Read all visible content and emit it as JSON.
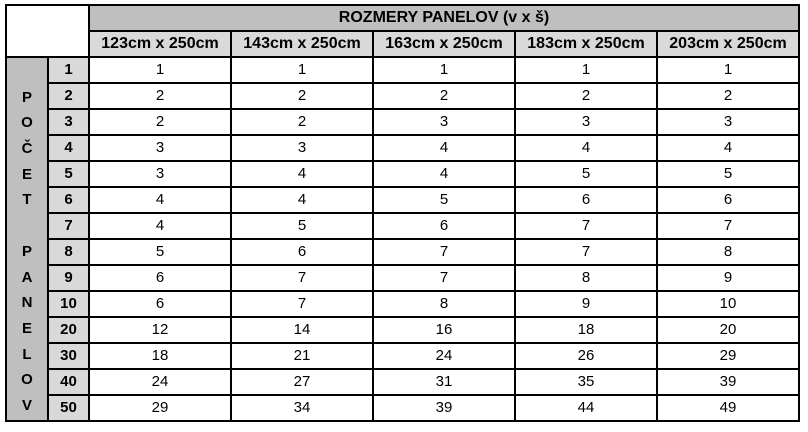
{
  "colors": {
    "band_dark": "#bfbfbf",
    "band_light": "#d9d9d9",
    "border": "#000000",
    "cell_background": "#ffffff",
    "text": "#000000"
  },
  "table": {
    "title": "ROZMERY PANELOV (v x š)",
    "side_label": "POČET PANELOV",
    "side_letters": [
      "",
      "P",
      "O",
      "Č",
      "E",
      "T",
      "",
      "P",
      "A",
      "N",
      "E",
      "L",
      "O",
      "V"
    ],
    "column_headers": [
      "123cm x 250cm",
      "143cm x 250cm",
      "163cm x 250cm",
      "183cm x 250cm",
      "203cm x 250cm"
    ],
    "rows": [
      {
        "count": "1",
        "values": [
          "1",
          "1",
          "1",
          "1",
          "1"
        ]
      },
      {
        "count": "2",
        "values": [
          "2",
          "2",
          "2",
          "2",
          "2"
        ]
      },
      {
        "count": "3",
        "values": [
          "2",
          "2",
          "3",
          "3",
          "3"
        ]
      },
      {
        "count": "4",
        "values": [
          "3",
          "3",
          "4",
          "4",
          "4"
        ]
      },
      {
        "count": "5",
        "values": [
          "3",
          "4",
          "4",
          "5",
          "5"
        ]
      },
      {
        "count": "6",
        "values": [
          "4",
          "4",
          "5",
          "6",
          "6"
        ]
      },
      {
        "count": "7",
        "values": [
          "4",
          "5",
          "6",
          "7",
          "7"
        ]
      },
      {
        "count": "8",
        "values": [
          "5",
          "6",
          "7",
          "7",
          "8"
        ]
      },
      {
        "count": "9",
        "values": [
          "6",
          "7",
          "7",
          "8",
          "9"
        ]
      },
      {
        "count": "10",
        "values": [
          "6",
          "7",
          "8",
          "9",
          "10"
        ]
      },
      {
        "count": "20",
        "values": [
          "12",
          "14",
          "16",
          "18",
          "20"
        ]
      },
      {
        "count": "30",
        "values": [
          "18",
          "21",
          "24",
          "26",
          "29"
        ]
      },
      {
        "count": "40",
        "values": [
          "24",
          "27",
          "31",
          "35",
          "39"
        ]
      },
      {
        "count": "50",
        "values": [
          "29",
          "34",
          "39",
          "44",
          "49"
        ]
      }
    ]
  },
  "chart_data": {
    "type": "table",
    "title": "ROZMERY PANELOV (v x š)",
    "row_axis_label": "POČET PANELOV",
    "categories": [
      "123cm x 250cm",
      "143cm x 250cm",
      "163cm x 250cm",
      "183cm x 250cm",
      "203cm x 250cm"
    ],
    "row_labels": [
      1,
      2,
      3,
      4,
      5,
      6,
      7,
      8,
      9,
      10,
      20,
      30,
      40,
      50
    ],
    "series": [
      {
        "name": "123cm x 250cm",
        "values": [
          1,
          2,
          2,
          3,
          3,
          4,
          4,
          5,
          6,
          6,
          12,
          18,
          24,
          29
        ]
      },
      {
        "name": "143cm x 250cm",
        "values": [
          1,
          2,
          2,
          3,
          4,
          4,
          5,
          6,
          7,
          7,
          14,
          21,
          27,
          34
        ]
      },
      {
        "name": "163cm x 250cm",
        "values": [
          1,
          2,
          3,
          4,
          4,
          5,
          6,
          7,
          7,
          8,
          16,
          24,
          31,
          39
        ]
      },
      {
        "name": "183cm x 250cm",
        "values": [
          1,
          2,
          3,
          4,
          5,
          6,
          7,
          7,
          8,
          9,
          18,
          26,
          35,
          44
        ]
      },
      {
        "name": "203cm x 250cm",
        "values": [
          1,
          2,
          3,
          4,
          5,
          6,
          7,
          8,
          9,
          10,
          20,
          29,
          39,
          49
        ]
      }
    ]
  }
}
